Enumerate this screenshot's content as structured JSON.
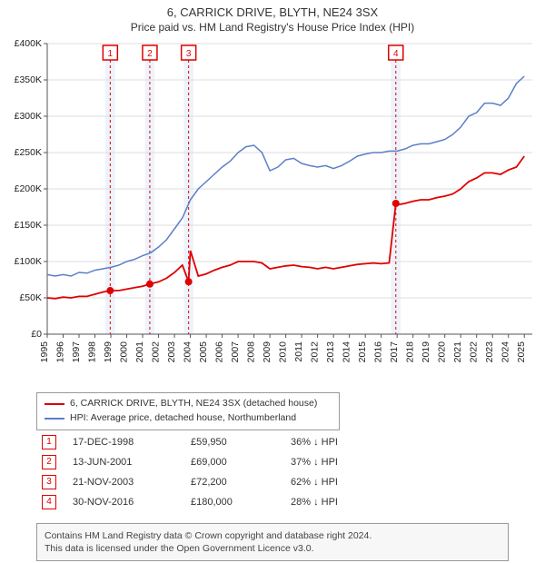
{
  "title": "6, CARRICK DRIVE, BLYTH, NE24 3SX",
  "subtitle": "Price paid vs. HM Land Registry's House Price Index (HPI)",
  "chart": {
    "type": "line",
    "background_color": "#ffffff",
    "grid_color": "#dddddd",
    "grid_on": true,
    "x": {
      "min": 1995,
      "max": 2025.5,
      "ticks": [
        1995,
        1996,
        1997,
        1998,
        1999,
        2000,
        2001,
        2002,
        2003,
        2004,
        2005,
        2006,
        2007,
        2008,
        2009,
        2010,
        2011,
        2012,
        2013,
        2014,
        2015,
        2016,
        2017,
        2018,
        2019,
        2020,
        2021,
        2022,
        2023,
        2024,
        2025
      ]
    },
    "y": {
      "min": 0,
      "max": 400000,
      "tick_step": 50000,
      "tick_labels": [
        "£0",
        "£50K",
        "£100K",
        "£150K",
        "£200K",
        "£250K",
        "£300K",
        "£350K",
        "£400K"
      ]
    },
    "event_band_color": "#eef3fb",
    "event_line_color": "#e00000",
    "event_line_dash": "3,3",
    "series": [
      {
        "id": "hpi",
        "label": "HPI: Average price, detached house, Northumberland",
        "color": "#5b7fc7",
        "line_width": 1.5,
        "marker": "none",
        "points": [
          [
            1995.0,
            82000
          ],
          [
            1995.5,
            80000
          ],
          [
            1996.0,
            82000
          ],
          [
            1996.5,
            80000
          ],
          [
            1997.0,
            85000
          ],
          [
            1997.5,
            84000
          ],
          [
            1998.0,
            88000
          ],
          [
            1998.5,
            90000
          ],
          [
            1999.0,
            92000
          ],
          [
            1999.5,
            95000
          ],
          [
            2000.0,
            100000
          ],
          [
            2000.5,
            103000
          ],
          [
            2001.0,
            108000
          ],
          [
            2001.5,
            112000
          ],
          [
            2002.0,
            120000
          ],
          [
            2002.5,
            130000
          ],
          [
            2003.0,
            145000
          ],
          [
            2003.5,
            160000
          ],
          [
            2004.0,
            185000
          ],
          [
            2004.5,
            200000
          ],
          [
            2005.0,
            210000
          ],
          [
            2005.5,
            220000
          ],
          [
            2006.0,
            230000
          ],
          [
            2006.5,
            238000
          ],
          [
            2007.0,
            250000
          ],
          [
            2007.5,
            258000
          ],
          [
            2008.0,
            260000
          ],
          [
            2008.5,
            250000
          ],
          [
            2009.0,
            225000
          ],
          [
            2009.5,
            230000
          ],
          [
            2010.0,
            240000
          ],
          [
            2010.5,
            242000
          ],
          [
            2011.0,
            235000
          ],
          [
            2011.5,
            232000
          ],
          [
            2012.0,
            230000
          ],
          [
            2012.5,
            232000
          ],
          [
            2013.0,
            228000
          ],
          [
            2013.5,
            232000
          ],
          [
            2014.0,
            238000
          ],
          [
            2014.5,
            245000
          ],
          [
            2015.0,
            248000
          ],
          [
            2015.5,
            250000
          ],
          [
            2016.0,
            250000
          ],
          [
            2016.5,
            252000
          ],
          [
            2017.0,
            252000
          ],
          [
            2017.5,
            255000
          ],
          [
            2018.0,
            260000
          ],
          [
            2018.5,
            262000
          ],
          [
            2019.0,
            262000
          ],
          [
            2019.5,
            265000
          ],
          [
            2020.0,
            268000
          ],
          [
            2020.5,
            275000
          ],
          [
            2021.0,
            285000
          ],
          [
            2021.5,
            300000
          ],
          [
            2022.0,
            305000
          ],
          [
            2022.5,
            318000
          ],
          [
            2023.0,
            318000
          ],
          [
            2023.5,
            315000
          ],
          [
            2024.0,
            325000
          ],
          [
            2024.5,
            345000
          ],
          [
            2025.0,
            355000
          ]
        ]
      },
      {
        "id": "property",
        "label": "6, CARRICK DRIVE, BLYTH, NE24 3SX (detached house)",
        "color": "#e00000",
        "line_width": 1.8,
        "marker": "circle",
        "marker_size": 4,
        "marker_at_events_only": true,
        "points": [
          [
            1995.0,
            50000
          ],
          [
            1995.5,
            49000
          ],
          [
            1996.0,
            51000
          ],
          [
            1996.5,
            50000
          ],
          [
            1997.0,
            52000
          ],
          [
            1997.5,
            52000
          ],
          [
            1998.0,
            55000
          ],
          [
            1998.5,
            58000
          ],
          [
            1998.96,
            59950
          ],
          [
            1999.5,
            60000
          ],
          [
            2000.0,
            62000
          ],
          [
            2000.5,
            64000
          ],
          [
            2001.0,
            66000
          ],
          [
            2001.45,
            69000
          ],
          [
            2002.0,
            72000
          ],
          [
            2002.5,
            77000
          ],
          [
            2003.0,
            85000
          ],
          [
            2003.5,
            95000
          ],
          [
            2003.89,
            72200
          ],
          [
            2004.0,
            115000
          ],
          [
            2004.5,
            80000
          ],
          [
            2005.0,
            83000
          ],
          [
            2005.5,
            88000
          ],
          [
            2006.0,
            92000
          ],
          [
            2006.5,
            95000
          ],
          [
            2007.0,
            100000
          ],
          [
            2007.5,
            100000
          ],
          [
            2008.0,
            100000
          ],
          [
            2008.5,
            98000
          ],
          [
            2009.0,
            90000
          ],
          [
            2009.5,
            92000
          ],
          [
            2010.0,
            94000
          ],
          [
            2010.5,
            95000
          ],
          [
            2011.0,
            93000
          ],
          [
            2011.5,
            92000
          ],
          [
            2012.0,
            90000
          ],
          [
            2012.5,
            92000
          ],
          [
            2013.0,
            90000
          ],
          [
            2013.5,
            92000
          ],
          [
            2014.0,
            94000
          ],
          [
            2014.5,
            96000
          ],
          [
            2015.0,
            97000
          ],
          [
            2015.5,
            98000
          ],
          [
            2016.0,
            97000
          ],
          [
            2016.5,
            98000
          ],
          [
            2016.92,
            180000
          ],
          [
            2017.0,
            178000
          ],
          [
            2017.5,
            180000
          ],
          [
            2018.0,
            183000
          ],
          [
            2018.5,
            185000
          ],
          [
            2019.0,
            185000
          ],
          [
            2019.5,
            188000
          ],
          [
            2020.0,
            190000
          ],
          [
            2020.5,
            193000
          ],
          [
            2021.0,
            200000
          ],
          [
            2021.5,
            210000
          ],
          [
            2022.0,
            215000
          ],
          [
            2022.5,
            222000
          ],
          [
            2023.0,
            222000
          ],
          [
            2023.5,
            220000
          ],
          [
            2024.0,
            226000
          ],
          [
            2024.5,
            230000
          ],
          [
            2025.0,
            245000
          ]
        ]
      }
    ],
    "events": [
      {
        "n": "1",
        "x": 1998.96,
        "band_half_width": 0.3,
        "date": "17-DEC-1998",
        "price": "£59,950",
        "delta": "36%",
        "dir": "down",
        "suffix": "HPI"
      },
      {
        "n": "2",
        "x": 2001.45,
        "band_half_width": 0.3,
        "date": "13-JUN-2001",
        "price": "£69,000",
        "delta": "37%",
        "dir": "down",
        "suffix": "HPI"
      },
      {
        "n": "3",
        "x": 2003.89,
        "band_half_width": 0.3,
        "date": "21-NOV-2003",
        "price": "£72,200",
        "delta": "62%",
        "dir": "down",
        "suffix": "HPI"
      },
      {
        "n": "4",
        "x": 2016.92,
        "band_half_width": 0.3,
        "date": "30-NOV-2016",
        "price": "£180,000",
        "delta": "28%",
        "dir": "down",
        "suffix": "HPI"
      }
    ]
  },
  "legend": {
    "series1_label": "6, CARRICK DRIVE, BLYTH, NE24 3SX (detached house)",
    "series2_label": "HPI: Average price, detached house, Northumberland"
  },
  "footer": {
    "line1": "Contains HM Land Registry data © Crown copyright and database right 2024.",
    "line2": "This data is licensed under the Open Government Licence v3.0."
  },
  "colors": {
    "text": "#333333",
    "axis": "#555555"
  }
}
